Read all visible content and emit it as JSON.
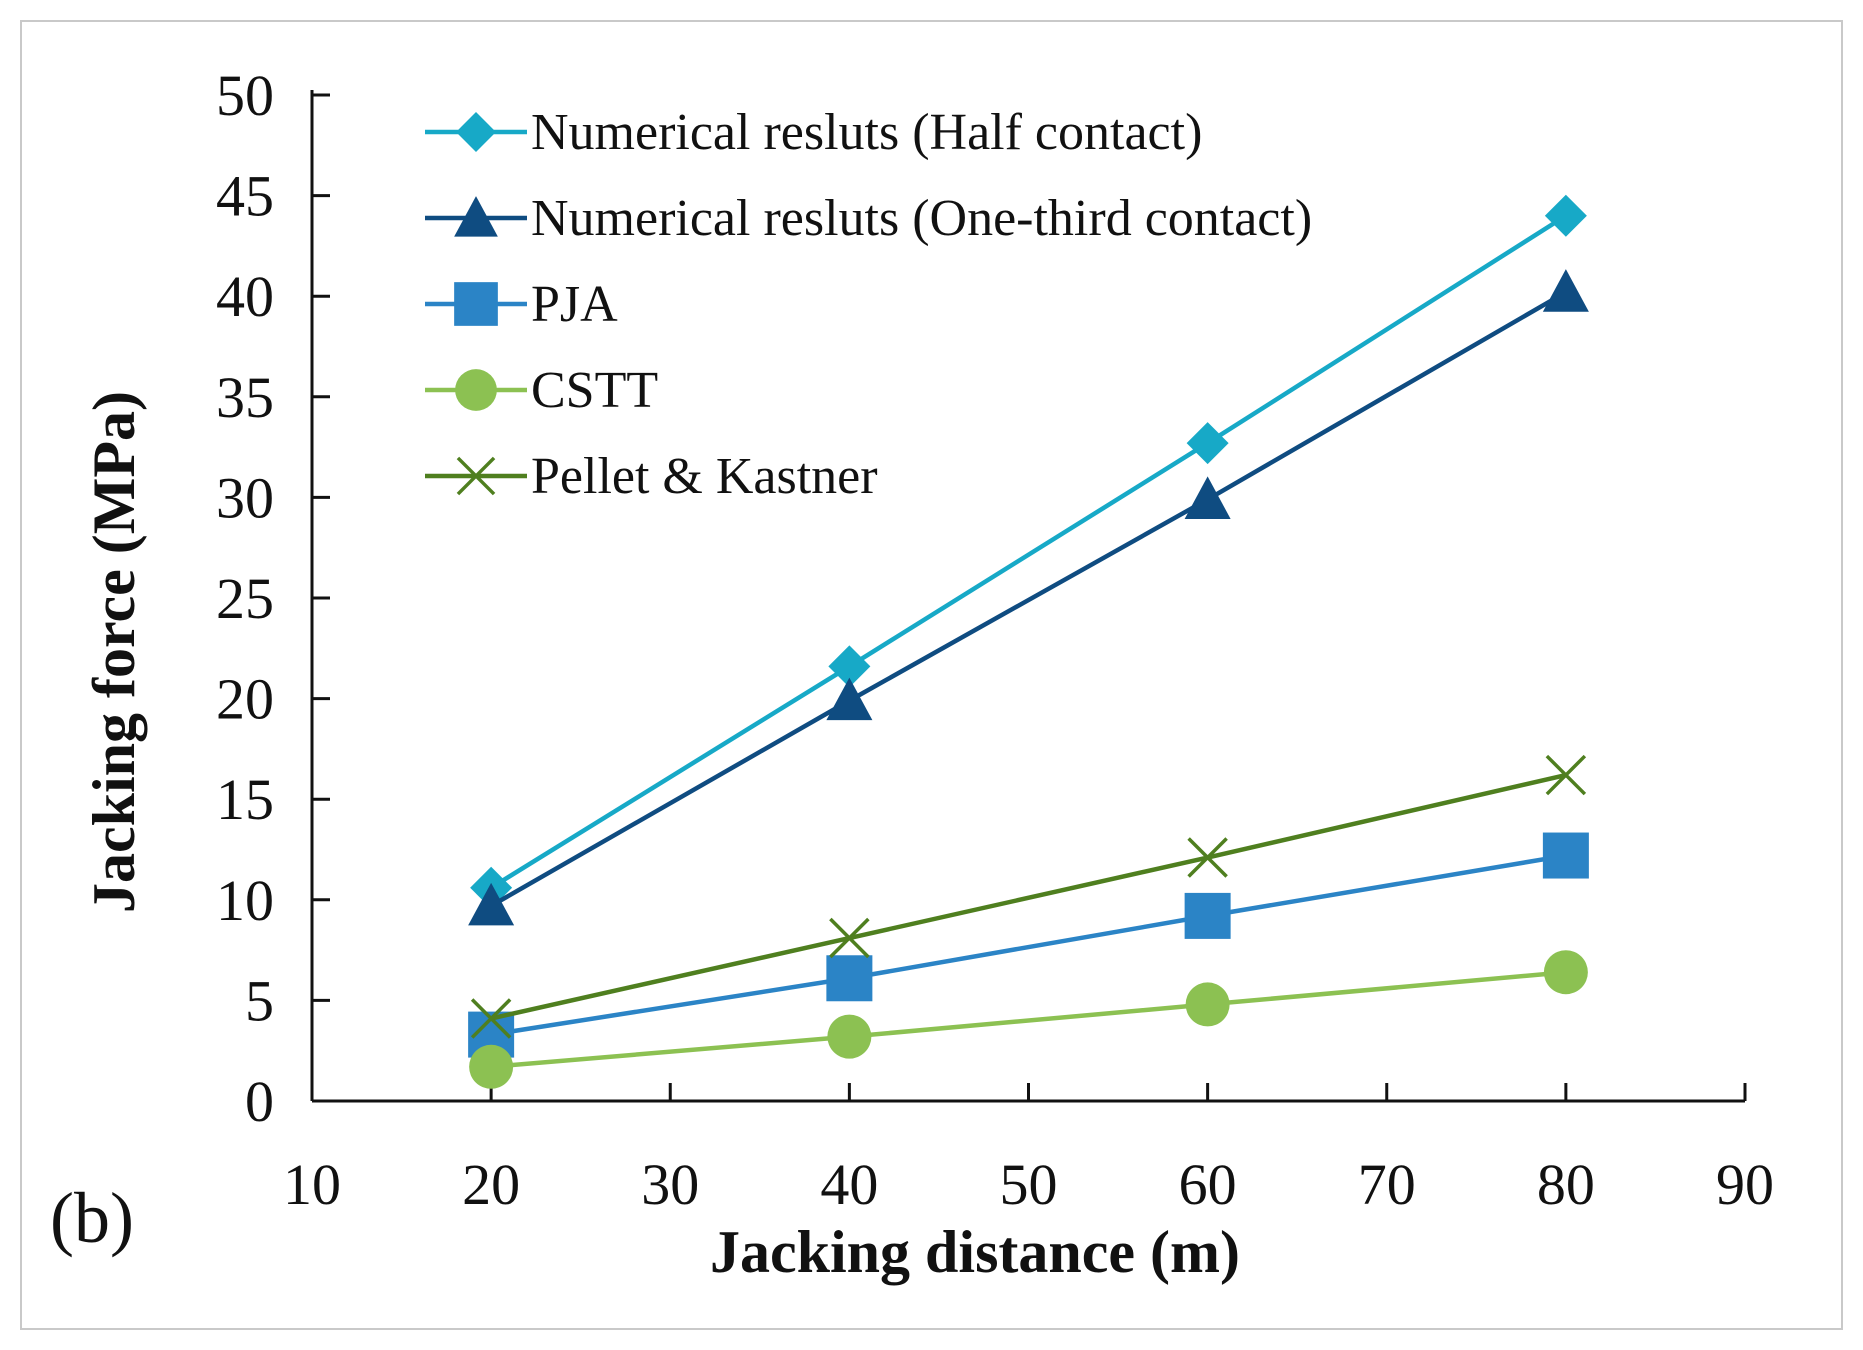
{
  "panel_label": "(b)",
  "chart_data": {
    "type": "line",
    "title": "",
    "xlabel": "Jacking distance (m)",
    "ylabel": "Jacking force (MPa)",
    "xlim": [
      10,
      90
    ],
    "ylim": [
      0,
      50
    ],
    "xticks": [
      10,
      20,
      30,
      40,
      50,
      60,
      70,
      80,
      90
    ],
    "yticks": [
      0,
      5,
      10,
      15,
      20,
      25,
      30,
      35,
      40,
      45,
      50
    ],
    "grid": false,
    "legend_position": "top-left",
    "x": [
      20,
      40,
      60,
      80
    ],
    "series": [
      {
        "name": "Numerical resluts (Half contact)",
        "values": [
          10.6,
          21.6,
          32.7,
          44.0
        ],
        "color": "#17a9c7",
        "marker": "diamond"
      },
      {
        "name": "Numerical resluts (One-third contact)",
        "values": [
          9.7,
          19.9,
          29.9,
          40.2
        ],
        "color": "#0f4c81",
        "marker": "triangle"
      },
      {
        "name": "PJA",
        "values": [
          3.3,
          6.1,
          9.2,
          12.2
        ],
        "color": "#2b84c6",
        "marker": "square"
      },
      {
        "name": "CSTT",
        "values": [
          1.7,
          3.2,
          4.8,
          6.4
        ],
        "color": "#8cc152",
        "marker": "circle"
      },
      {
        "name": "Pellet & Kastner",
        "values": [
          4.1,
          8.1,
          12.1,
          16.2
        ],
        "color": "#4f7f1f",
        "marker": "x"
      }
    ]
  }
}
